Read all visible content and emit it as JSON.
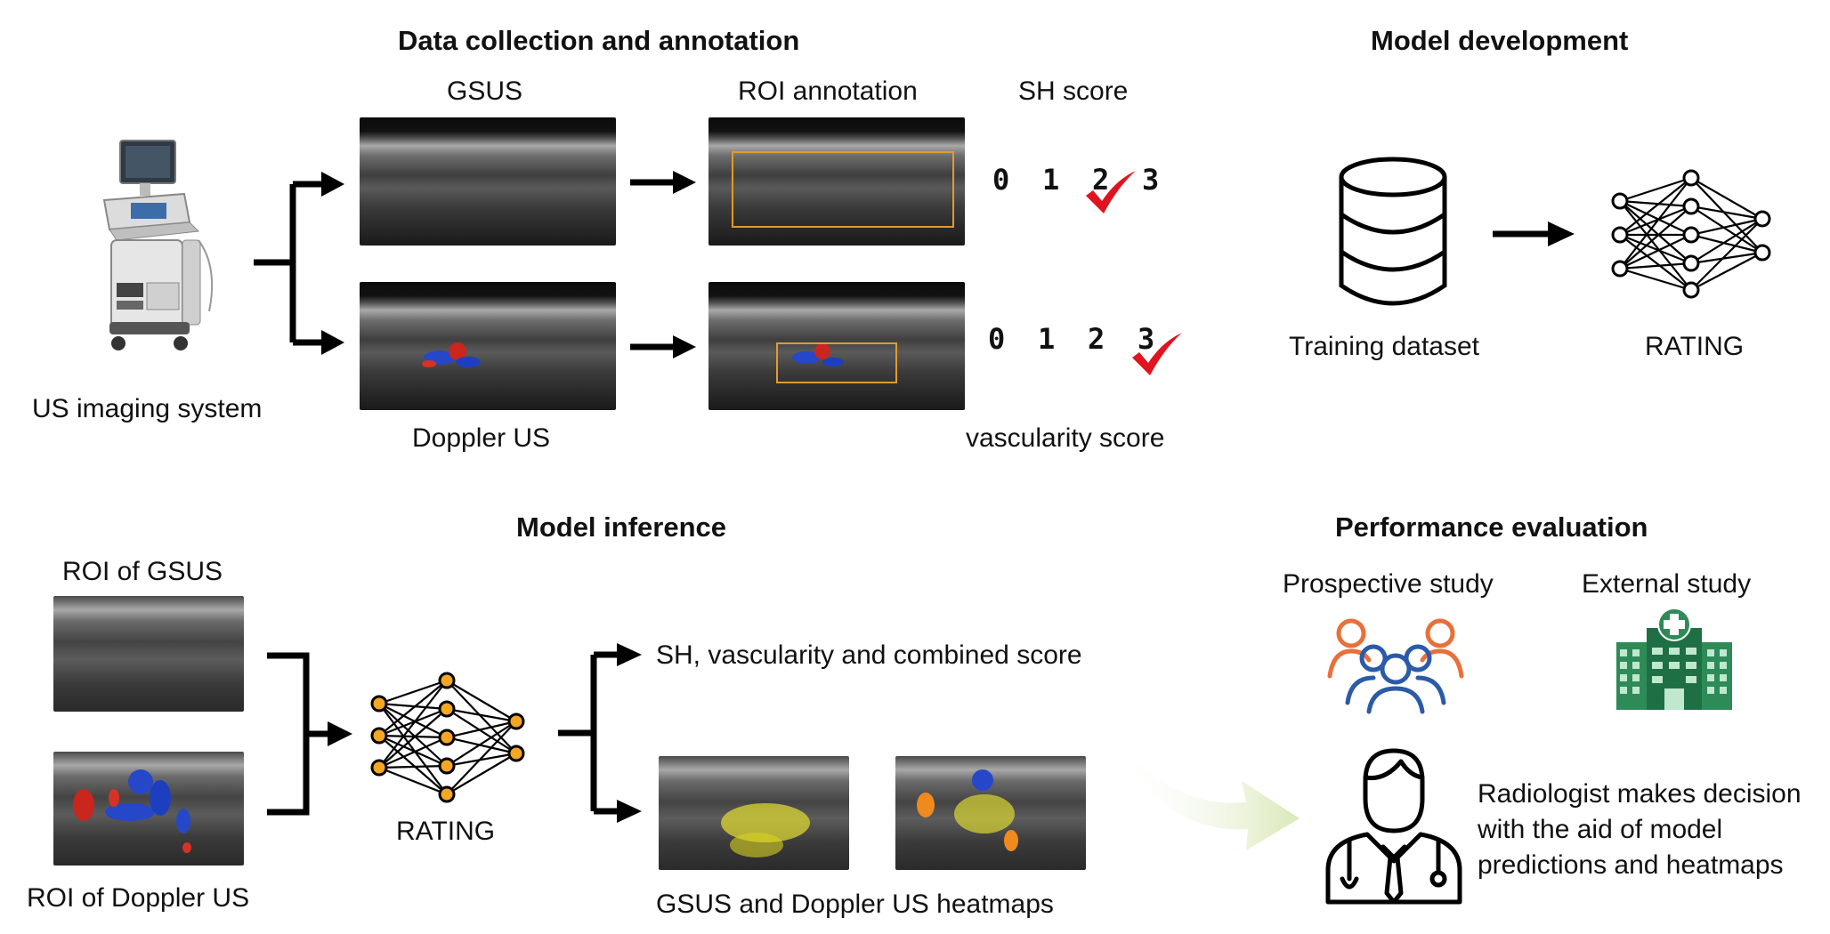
{
  "sections": {
    "data_collection": "Data collection and annotation",
    "model_development": "Model development",
    "model_inference": "Model inference",
    "performance_evaluation": "Performance evaluation"
  },
  "labels": {
    "us_system": "US imaging system",
    "gsus": "GSUS",
    "roi_annotation": "ROI annotation",
    "sh_score": "SH score",
    "doppler_us": "Doppler US",
    "vascularity_score": "vascularity score",
    "training_dataset": "Training dataset",
    "rating_top": "RATING",
    "roi_gsus": "ROI of GSUS",
    "roi_doppler": "ROI of Doppler US",
    "rating_bottom": "RATING",
    "output_scores": "SH, vascularity and combined score",
    "heatmaps": "GSUS and Doppler US heatmaps",
    "prospective": "Prospective study",
    "external": "External study",
    "radiologist_1": "Radiologist makes decision",
    "radiologist_2": "with the aid of model",
    "radiologist_3": "predictions and heatmaps"
  },
  "score_digits": [
    "0",
    "1",
    "2",
    "3"
  ],
  "sh_selected": "2",
  "vascularity_selected": "3",
  "colors": {
    "arrow": "#000000",
    "roi_box": "#e39a2c",
    "check": "#e0141e",
    "node_orange": "#f5a623",
    "people_orange": "#e8703a",
    "people_blue": "#2b5aa8",
    "hospital_green": "#2e8b57",
    "gradient_arrow": "#d9e8b8"
  },
  "icons": [
    "ultrasound-machine-icon",
    "database-icon",
    "neural-network-icon",
    "people-group-icon",
    "hospital-icon",
    "doctor-icon",
    "checkmark-icon"
  ]
}
